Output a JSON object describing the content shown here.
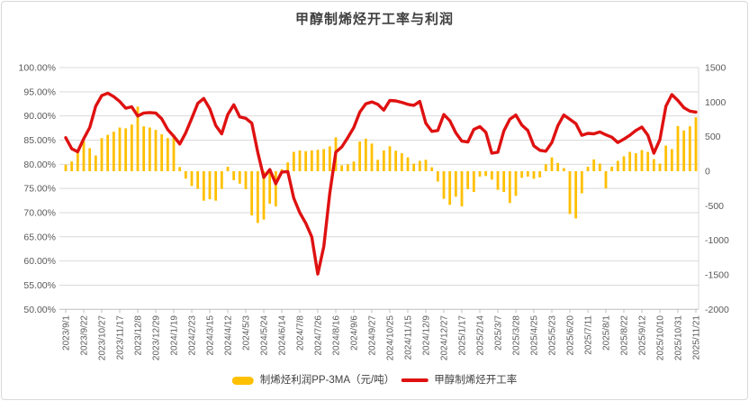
{
  "title": "甲醇制烯烃开工率与利润",
  "legend": {
    "bar_label": "制烯烃利润PP-3MA（元/吨）",
    "line_label": "甲醇制烯烃开工率"
  },
  "colors": {
    "bar": "#FFC000",
    "line": "#DF1111",
    "grid": "#D9D9D9",
    "axis_line": "#BFBFBF",
    "axis_text": "#595959",
    "title_text": "#404040",
    "border": "#D9D9D9"
  },
  "chart_data": {
    "type": "combo-bar-line",
    "title": "甲醇制烯烃开工率与利润",
    "left_axis": {
      "ylim": [
        "50.00%",
        "100.00%"
      ],
      "tick_labels": [
        "100.00%",
        "95.00%",
        "90.00%",
        "85.00%",
        "80.00%",
        "75.00%",
        "70.00%",
        "65.00%",
        "60.00%",
        "55.00%",
        "50.00%"
      ]
    },
    "right_axis": {
      "ylim": [
        -2000,
        1500
      ],
      "tick_labels": [
        "1500",
        "1000",
        "500",
        "0",
        "-500",
        "-1000",
        "-1500",
        "-2000"
      ]
    },
    "n_points": 106,
    "label_every": 3,
    "x_tick_labels": [
      "2023/9/1",
      "2023/9/22",
      "2023/10/27",
      "2023/11/17",
      "2023/12/8",
      "2023/12/29",
      "2024/1/19",
      "2024/2/23",
      "2024/3/15",
      "2024/4/12",
      "2024/5/3",
      "2024/5/24",
      "2024/6/14",
      "2024/7/8",
      "2024/7/26",
      "2024/8/16",
      "2024/9/6",
      "2024/9/27",
      "2024/10/25",
      "2024/11/15",
      "2024/12/9",
      "2024/12/27",
      "2025/1/17",
      "2025/2/14",
      "2025/3/7",
      "2025/3/28",
      "2025/4/25",
      "2025/5/23",
      "2025/6/20",
      "2025/7/11",
      "2025/8/1",
      "2025/8/22",
      "2025/9/12",
      "2025/10/10",
      "2025/10/31",
      "2025/11/21"
    ],
    "series": [
      {
        "name": "制烯烃利润PP-3MA（元/吨）",
        "type": "bar",
        "axis": "right",
        "unit": "元/吨",
        "values": [
          94,
          141,
          299,
          436,
          333,
          227,
          479,
          526,
          573,
          632,
          620,
          675,
          936,
          650,
          632,
          598,
          534,
          479,
          526,
          60,
          -107,
          -214,
          -256,
          -427,
          -406,
          -427,
          -256,
          64,
          -130,
          -180,
          -260,
          -640,
          -750,
          -700,
          -470,
          -510,
          30,
          128,
          280,
          300,
          290,
          300,
          310,
          320,
          360,
          490,
          85,
          100,
          140,
          430,
          470,
          400,
          165,
          300,
          361,
          296,
          260,
          200,
          110,
          150,
          165,
          57,
          -150,
          -400,
          -487,
          -370,
          -509,
          -260,
          -300,
          -80,
          -70,
          -122,
          -270,
          -300,
          -461,
          -357,
          -96,
          -78,
          -110,
          -90,
          100,
          200,
          120,
          45,
          -620,
          -684,
          -320,
          64,
          171,
          110,
          -250,
          65,
          150,
          215,
          280,
          260,
          305,
          280,
          175,
          110,
          370,
          320,
          654,
          590,
          650,
          780
        ]
      },
      {
        "name": "甲醇制烯烃开工率",
        "type": "line",
        "axis": "left",
        "unit": "%",
        "values": [
          85.5,
          83.2,
          82.6,
          85.3,
          87.6,
          92.0,
          94.2,
          94.7,
          94.0,
          93.0,
          91.6,
          91.9,
          90.0,
          90.6,
          90.7,
          90.6,
          89.4,
          87.2,
          85.8,
          84.2,
          86.5,
          89.5,
          92.6,
          93.6,
          91.5,
          88.0,
          86.3,
          90.3,
          92.3,
          89.8,
          89.5,
          88.5,
          82.5,
          77.3,
          78.9,
          76.0,
          78.4,
          78.5,
          73.0,
          70.0,
          67.8,
          65.0,
          57.3,
          63.0,
          74.0,
          82.5,
          83.6,
          85.5,
          87.6,
          90.8,
          92.5,
          92.9,
          92.4,
          91.2,
          93.2,
          93.1,
          92.8,
          92.4,
          92.2,
          93.0,
          88.5,
          86.8,
          87.0,
          90.3,
          89.0,
          86.5,
          84.8,
          84.6,
          87.2,
          87.8,
          86.6,
          82.3,
          82.5,
          86.9,
          89.3,
          90.2,
          88.1,
          87.0,
          83.8,
          82.9,
          82.7,
          84.5,
          88.0,
          90.2,
          89.3,
          88.4,
          86.0,
          86.4,
          86.3,
          86.7,
          86.1,
          85.6,
          84.5,
          85.2,
          86.0,
          87.0,
          87.7,
          86.0,
          82.3,
          85.1,
          92.0,
          94.4,
          93.2,
          91.7,
          91.0,
          90.8
        ]
      }
    ]
  }
}
